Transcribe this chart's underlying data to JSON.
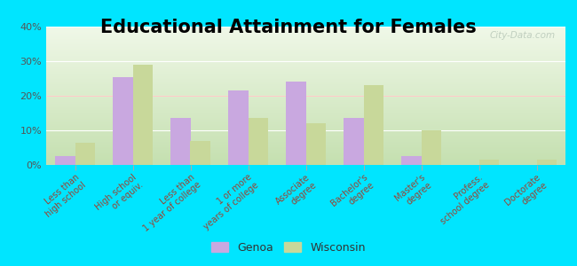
{
  "title": "Educational Attainment for Females",
  "categories": [
    "Less than\nhigh school",
    "High school\nor equiv.",
    "Less than\n1 year of college",
    "1 or more\nyears of college",
    "Associate\ndegree",
    "Bachelor's\ndegree",
    "Master's\ndegree",
    "Profess.\nschool degree",
    "Doctorate\ndegree"
  ],
  "genoa_values": [
    2.5,
    25.5,
    13.5,
    21.5,
    24.0,
    13.5,
    2.5,
    0.0,
    0.0
  ],
  "wisconsin_values": [
    6.5,
    29.0,
    7.0,
    13.5,
    12.0,
    23.0,
    10.0,
    1.5,
    1.5
  ],
  "genoa_color": "#c9a8e0",
  "wisconsin_color": "#c8d89a",
  "outer_background": "#00e5ff",
  "ylim": [
    0,
    40
  ],
  "yticks": [
    0,
    10,
    20,
    30,
    40
  ],
  "ytick_labels": [
    "0%",
    "10%",
    "20%",
    "30%",
    "40%"
  ],
  "title_fontsize": 15,
  "tick_label_fontsize": 7,
  "legend_fontsize": 9,
  "watermark": "City-Data.com"
}
